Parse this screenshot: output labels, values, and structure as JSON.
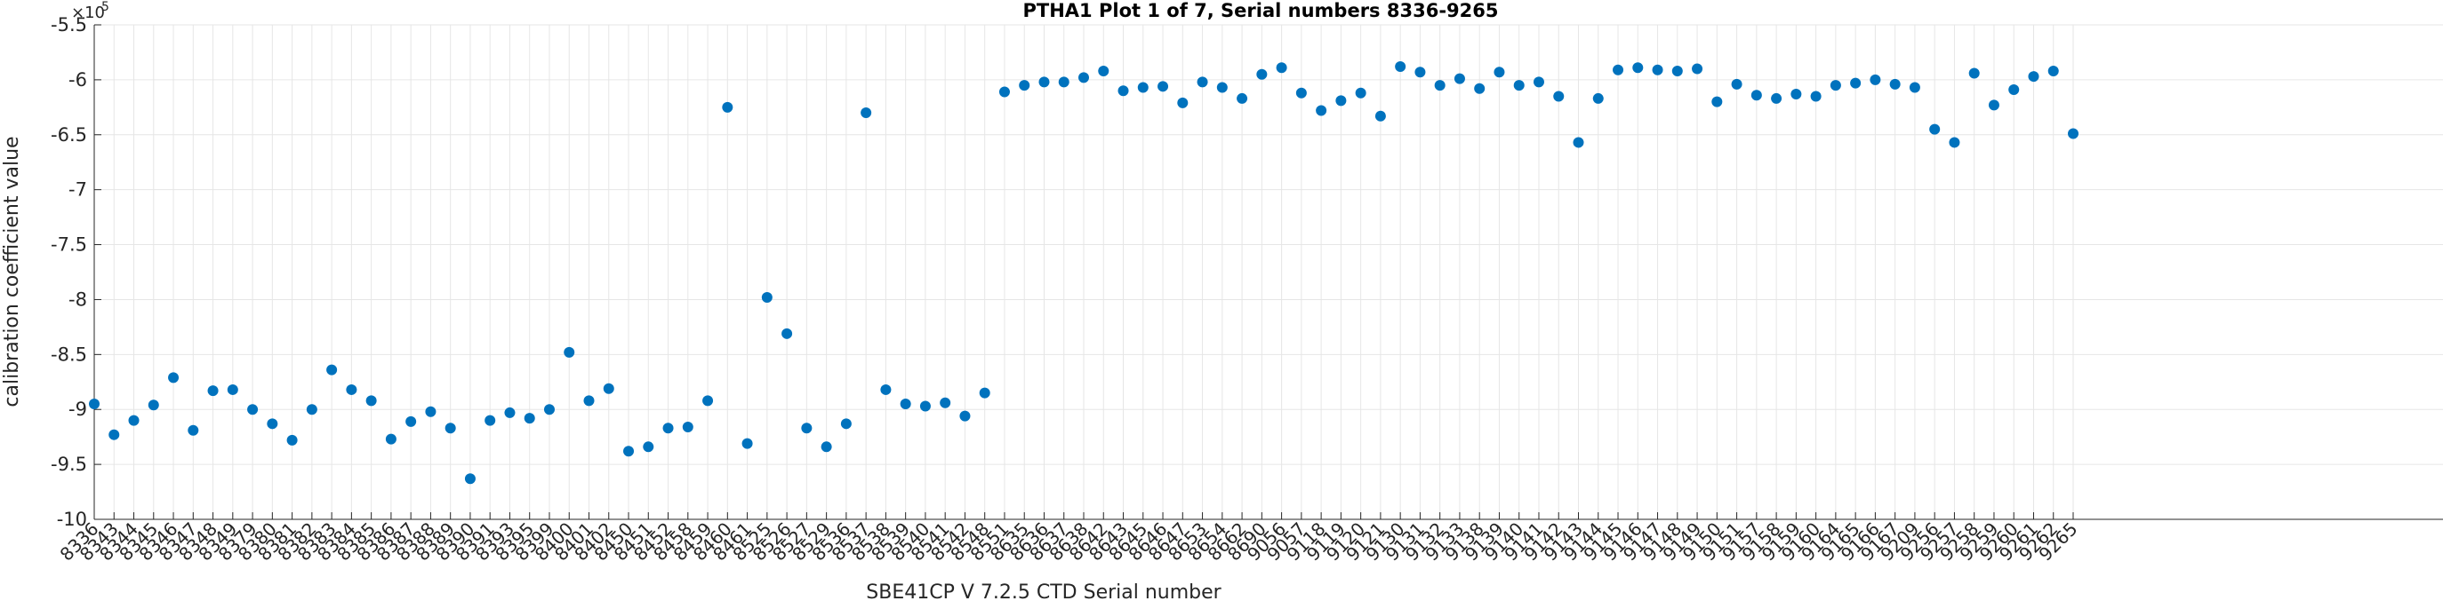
{
  "chart_data": {
    "type": "scatter",
    "title": "PTHA1 Plot 1 of 7, Serial numbers 8336-9265",
    "xlabel": "SBE41CP V 7.2.5 CTD Serial number",
    "ylabel": "calibration coefficient value",
    "exponent_label": "×10",
    "exponent_power": "-5",
    "ylim": [
      -10,
      -5.5
    ],
    "yticks": [
      "-5.5",
      "-6",
      "-6.5",
      "-7",
      "-7.5",
      "-8",
      "-8.5",
      "-9",
      "-9.5",
      "-10"
    ],
    "ytick_values": [
      -5.5,
      -6,
      -6.5,
      -7,
      -7.5,
      -8,
      -8.5,
      -9,
      -9.5,
      -10
    ],
    "grid": true,
    "marker_color": "#0072BD",
    "categories": [
      "8336",
      "8343",
      "8344",
      "8345",
      "8346",
      "8347",
      "8348",
      "8349",
      "8379",
      "8380",
      "8381",
      "8382",
      "8383",
      "8384",
      "8385",
      "8386",
      "8387",
      "8388",
      "8389",
      "8390",
      "8391",
      "8393",
      "8395",
      "8399",
      "8400",
      "8401",
      "8402",
      "8450",
      "8451",
      "8452",
      "8458",
      "8459",
      "8460",
      "8461",
      "8525",
      "8526",
      "8527",
      "8529",
      "8536",
      "8537",
      "8538",
      "8539",
      "8540",
      "8541",
      "8542",
      "8548",
      "8551",
      "8635",
      "8636",
      "8637",
      "8638",
      "8642",
      "8643",
      "8645",
      "8646",
      "8647",
      "8653",
      "8654",
      "8662",
      "8690",
      "9056",
      "9057",
      "9118",
      "9119",
      "9120",
      "9121",
      "9130",
      "9131",
      "9132",
      "9133",
      "9138",
      "9139",
      "9140",
      "9141",
      "9142",
      "9143",
      "9144",
      "9145",
      "9146",
      "9147",
      "9148",
      "9149",
      "9150",
      "9151",
      "9157",
      "9158",
      "9159",
      "9160",
      "9164",
      "9165",
      "9166",
      "9167",
      "9209",
      "9256",
      "9257",
      "9258",
      "9259",
      "9260",
      "9261",
      "9262",
      "9265"
    ],
    "values": [
      -8.95,
      -9.23,
      -9.1,
      -8.96,
      -8.71,
      -9.19,
      -8.83,
      -8.82,
      -9.0,
      -9.13,
      -9.28,
      -9.0,
      -8.64,
      -8.82,
      -8.92,
      -9.27,
      -9.11,
      -9.02,
      -9.17,
      -9.63,
      -9.1,
      -9.03,
      -9.08,
      -9.0,
      -8.48,
      -8.92,
      -8.81,
      -9.38,
      -9.34,
      -9.17,
      -9.16,
      -8.92,
      -6.25,
      -9.31,
      -7.98,
      -8.31,
      -9.17,
      -9.34,
      -9.13,
      -6.3,
      -8.82,
      -8.95,
      -8.97,
      -8.94,
      -9.06,
      -8.85,
      -6.11,
      -6.05,
      -6.02,
      -6.02,
      -5.98,
      -5.92,
      -6.1,
      -6.07,
      -6.06,
      -6.21,
      -6.02,
      -6.07,
      -6.17,
      -5.95,
      -5.89,
      -6.12,
      -6.28,
      -6.19,
      -6.12,
      -6.33,
      -5.88,
      -5.93,
      -6.05,
      -5.99,
      -6.08,
      -5.93,
      -6.05,
      -6.02,
      -6.15,
      -6.57,
      -6.17,
      -5.91,
      -5.89,
      -5.91,
      -5.92,
      -5.9,
      -6.2,
      -6.04,
      -6.14,
      -6.17,
      -6.13,
      -6.15,
      -6.05,
      -6.03,
      -6.0,
      -6.04,
      -6.07,
      -6.45,
      -6.57,
      -5.94,
      -6.23,
      -6.09,
      -5.97,
      -5.92,
      -6.49
    ]
  }
}
